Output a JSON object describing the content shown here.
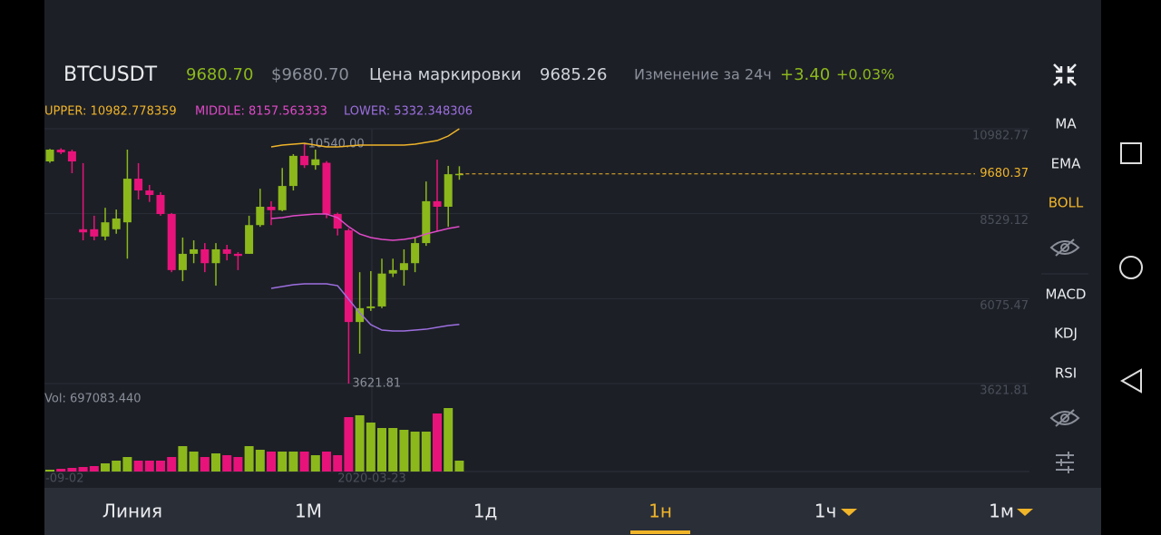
{
  "header": {
    "symbol": "BTCUSDT",
    "price": "9680.70",
    "price_usd": "$9680.70",
    "mark_label": "Цена маркировки",
    "mark_price": "9685.26",
    "change_label": "Изменение за 24ч",
    "change": "+3.40",
    "change_pct": "+0.03%"
  },
  "toolbar": {
    "items": [
      "MA",
      "EMA",
      "BOLL",
      "MACD",
      "KDJ",
      "RSI"
    ],
    "active": "BOLL"
  },
  "tabs": {
    "items": [
      "Линия",
      "1М",
      "1д",
      "1н",
      "1ч",
      "1м"
    ],
    "active": "1н"
  },
  "chart_data": {
    "type": "candlestick",
    "up_color": "#8cb81c",
    "down_color": "#e8137a",
    "ylim": [
      3621.81,
      10982.77
    ],
    "yticks": [
      3621.81,
      6075.47,
      8529.12,
      10982.77
    ],
    "x_labels": [
      "-09-02",
      "2020-03-23"
    ],
    "open": [
      10040,
      10380,
      10330,
      8080,
      8080,
      7870,
      8080,
      8280,
      9540,
      9200,
      9070,
      8520,
      6900,
      7370,
      7500,
      7100,
      7500,
      7370,
      7370,
      8200,
      8730,
      8630,
      9330,
      10200,
      9930,
      10000,
      8520,
      8050,
      5400,
      5800,
      5850,
      6800,
      6900,
      7100,
      7680,
      8890,
      8730,
      9670
    ],
    "high": [
      10400,
      10420,
      10380,
      9990,
      8470,
      8700,
      8650,
      10380,
      9990,
      9360,
      9150,
      8550,
      7840,
      7760,
      7680,
      7680,
      7630,
      7420,
      8470,
      9250,
      8890,
      9850,
      10250,
      10540,
      10380,
      10050,
      8560,
      8100,
      6840,
      6870,
      7230,
      7230,
      7500,
      7840,
      9460,
      10090,
      9910,
      9900
    ],
    "low": [
      10000,
      10250,
      9700,
      7760,
      7760,
      7760,
      7950,
      7230,
      8940,
      8870,
      8470,
      6840,
      6580,
      7100,
      6840,
      6450,
      7180,
      6900,
      7370,
      8150,
      8200,
      8600,
      9200,
      9850,
      9800,
      8400,
      7900,
      3621.81,
      4485,
      5720,
      5800,
      6700,
      6450,
      6840,
      7600,
      8020,
      8150,
      9510
    ],
    "close": [
      10380,
      10300,
      10040,
      7990,
      7870,
      8280,
      8390,
      9540,
      9200,
      9070,
      8520,
      6900,
      7370,
      7500,
      7100,
      7500,
      7370,
      7310,
      8200,
      8730,
      8630,
      9330,
      10200,
      9930,
      10100,
      8520,
      8100,
      5400,
      5800,
      5850,
      6800,
      6900,
      7100,
      7680,
      8890,
      8730,
      9670,
      9680.37
    ],
    "max_label": "10540.00",
    "min_label": "3621.81",
    "last_price": 9680.37,
    "last_color": "#f0b429",
    "series": [
      {
        "name": "UPPER: 10982.778359",
        "color": "#f0b429",
        "values": [
          null,
          null,
          null,
          null,
          null,
          null,
          null,
          null,
          null,
          null,
          null,
          null,
          null,
          null,
          null,
          null,
          null,
          null,
          null,
          null,
          10459,
          10511,
          10537,
          10564,
          10511,
          10459,
          10459,
          10485,
          10511,
          10511,
          10511,
          10511,
          10511,
          10537,
          10590,
          10642,
          10773,
          10982.78
        ]
      },
      {
        "name": "MIDDLE: 8157.563333",
        "color": "#e04ac8",
        "values": [
          null,
          null,
          null,
          null,
          null,
          null,
          null,
          null,
          null,
          null,
          null,
          null,
          null,
          null,
          null,
          null,
          null,
          null,
          null,
          null,
          8389,
          8415,
          8468,
          8494,
          8520,
          8520,
          8415,
          8153,
          7943,
          7839,
          7786,
          7760,
          7786,
          7839,
          7943,
          8022,
          8101,
          8157.56
        ]
      },
      {
        "name": "LOWER: 5332.348306",
        "color": "#9d6fe0",
        "values": [
          null,
          null,
          null,
          null,
          null,
          null,
          null,
          null,
          null,
          null,
          null,
          null,
          null,
          null,
          null,
          null,
          null,
          null,
          null,
          null,
          6372,
          6424,
          6477,
          6503,
          6503,
          6503,
          6450,
          6057,
          5664,
          5323,
          5166,
          5140,
          5140,
          5166,
          5192,
          5245,
          5297,
          5332.35
        ]
      }
    ],
    "volume_label": "Vol: 697083.440",
    "volume": [
      116000,
      174000,
      232000,
      290000,
      349000,
      523000,
      697000,
      929000,
      697000,
      697000,
      697000,
      929000,
      1627000,
      1278000,
      929000,
      1162000,
      1046000,
      929000,
      1627000,
      1394000,
      1278000,
      1278000,
      1278000,
      1278000,
      1046000,
      1278000,
      1046000,
      3485000,
      3602000,
      3137000,
      2788000,
      2788000,
      2672000,
      2556000,
      2556000,
      3718000,
      4066000,
      697083.44
    ]
  }
}
